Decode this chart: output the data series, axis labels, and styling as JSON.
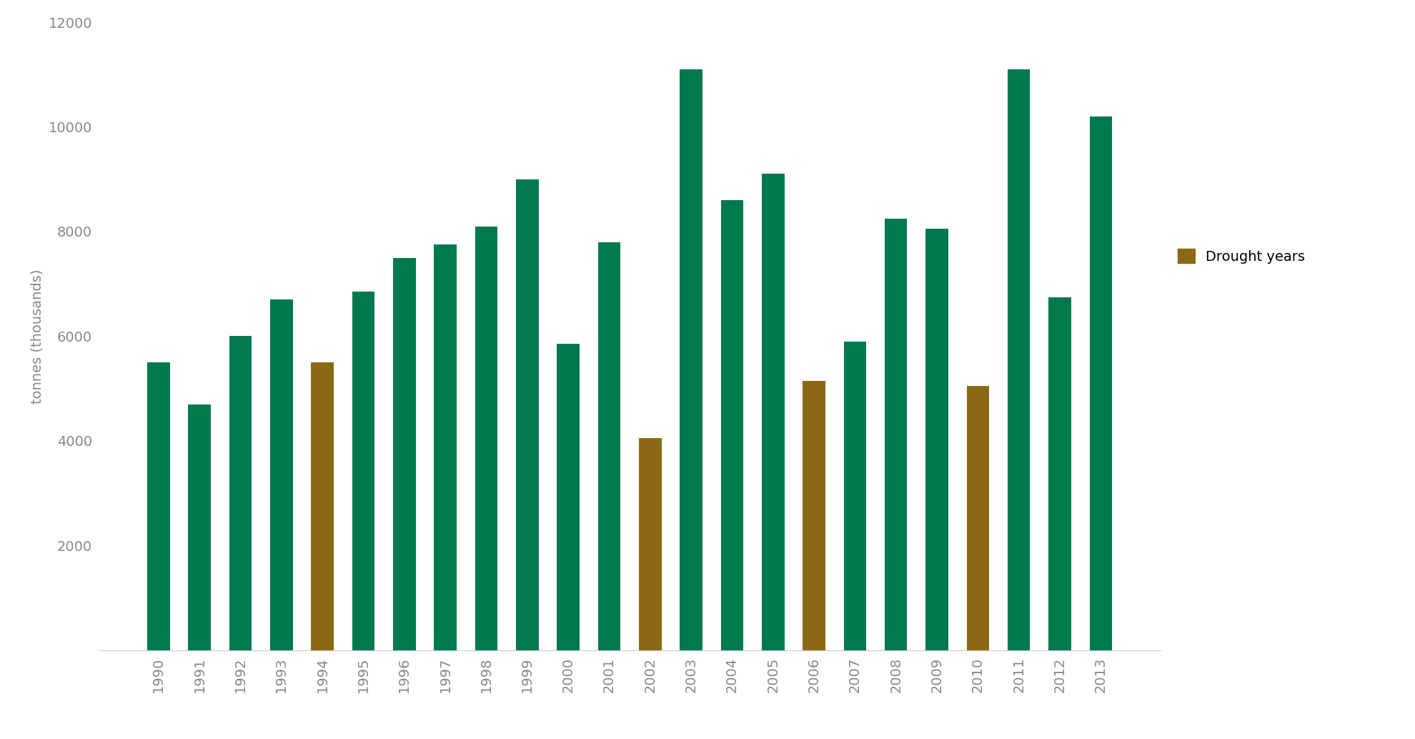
{
  "years": [
    1990,
    1991,
    1992,
    1993,
    1994,
    1995,
    1996,
    1997,
    1998,
    1999,
    2000,
    2001,
    2002,
    2003,
    2004,
    2005,
    2006,
    2007,
    2008,
    2009,
    2010,
    2011,
    2012,
    2013
  ],
  "values": [
    5500,
    4700,
    6000,
    6700,
    5500,
    6850,
    7500,
    7750,
    8100,
    9000,
    5850,
    7800,
    4050,
    11100,
    8600,
    9100,
    5150,
    5900,
    8250,
    8050,
    5050,
    11100,
    6750,
    10200
  ],
  "drought_years": [
    1994,
    2002,
    2006,
    2010
  ],
  "green_color": "#007A4D",
  "brown_color": "#8B6914",
  "background_color": "#FFFFFF",
  "ylabel": "tonnes (thousands)",
  "ylim": [
    0,
    12000
  ],
  "yticks": [
    2000,
    4000,
    6000,
    8000,
    10000,
    12000
  ],
  "legend_label": "Drought years",
  "tick_fontsize": 14,
  "label_fontsize": 14,
  "bar_width": 0.55
}
